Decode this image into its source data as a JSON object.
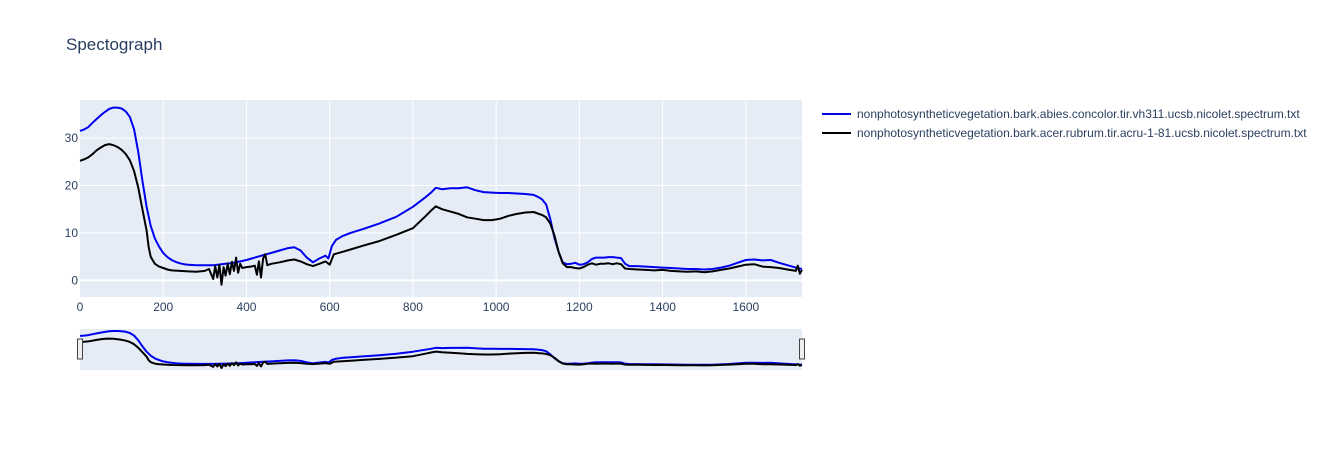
{
  "chart_data": {
    "type": "line",
    "title": "Spectograph",
    "xlabel": "",
    "ylabel": "",
    "xlim": [
      0,
      1735
    ],
    "ylim": [
      -3.5,
      38
    ],
    "x_ticks": [
      0,
      200,
      400,
      600,
      800,
      1000,
      1200,
      1400,
      1600
    ],
    "y_ticks": [
      0,
      10,
      20,
      30
    ],
    "grid": true,
    "legend_position": "top-right",
    "rangeslider": true,
    "colors": {
      "plot_bg": "#E5ECF6",
      "grid": "#ffffff",
      "text": "#2a3f5f"
    },
    "series": [
      {
        "name": "nonphotosyntheticvegetation.bark.abies.concolor.tir.vh311.ucsb.nicolet.spectrum.txt",
        "color": "#0000ee",
        "x": [
          0,
          10,
          20,
          30,
          40,
          50,
          60,
          70,
          80,
          90,
          100,
          110,
          120,
          130,
          140,
          150,
          160,
          170,
          180,
          190,
          200,
          210,
          220,
          230,
          240,
          250,
          260,
          280,
          300,
          320,
          340,
          360,
          380,
          400,
          420,
          440,
          460,
          480,
          500,
          515,
          530,
          545,
          560,
          575,
          590,
          597,
          605,
          615,
          630,
          650,
          680,
          720,
          760,
          800,
          830,
          845,
          855,
          870,
          890,
          910,
          930,
          950,
          970,
          990,
          1010,
          1030,
          1050,
          1070,
          1090,
          1100,
          1110,
          1120,
          1130,
          1140,
          1150,
          1160,
          1170,
          1180,
          1190,
          1200,
          1210,
          1220,
          1230,
          1240,
          1250,
          1260,
          1270,
          1280,
          1290,
          1300,
          1310,
          1320,
          1340,
          1360,
          1380,
          1400,
          1420,
          1440,
          1460,
          1480,
          1500,
          1520,
          1540,
          1560,
          1580,
          1600,
          1620,
          1640,
          1660,
          1680,
          1700,
          1720,
          1735
        ],
        "y": [
          31.5,
          31.8,
          32.3,
          33.2,
          34.0,
          34.8,
          35.5,
          36.1,
          36.4,
          36.4,
          36.2,
          35.6,
          34.4,
          31.8,
          27.0,
          21.0,
          15.5,
          11.5,
          8.8,
          7.1,
          5.8,
          4.9,
          4.3,
          3.9,
          3.6,
          3.4,
          3.3,
          3.2,
          3.2,
          3.2,
          3.4,
          3.6,
          3.9,
          4.3,
          4.8,
          5.3,
          5.8,
          6.3,
          6.8,
          7.0,
          6.3,
          4.8,
          3.8,
          4.6,
          5.2,
          4.6,
          7.2,
          8.5,
          9.3,
          10.0,
          10.8,
          12.0,
          13.4,
          15.5,
          17.5,
          18.6,
          19.5,
          19.2,
          19.4,
          19.4,
          19.6,
          19.0,
          18.6,
          18.5,
          18.4,
          18.4,
          18.3,
          18.2,
          18.0,
          17.6,
          17.1,
          16.0,
          13.0,
          9.0,
          6.0,
          3.8,
          3.4,
          3.5,
          3.7,
          3.3,
          3.4,
          3.8,
          4.5,
          4.8,
          4.8,
          4.8,
          4.9,
          4.9,
          4.8,
          4.7,
          3.5,
          3.0,
          3.0,
          2.9,
          2.8,
          2.7,
          2.6,
          2.5,
          2.4,
          2.4,
          2.3,
          2.4,
          2.7,
          3.1,
          3.7,
          4.3,
          4.4,
          4.2,
          4.3,
          3.7,
          3.2,
          2.7,
          2.4
        ]
      },
      {
        "name": "nonphotosyntheticvegetation.bark.acer.rubrum.tir.acru-1-81.ucsb.nicolet.spectrum.txt",
        "color": "#000000",
        "x": [
          0,
          10,
          20,
          30,
          40,
          50,
          60,
          70,
          80,
          90,
          100,
          110,
          120,
          130,
          140,
          150,
          160,
          165,
          170,
          175,
          180,
          190,
          200,
          210,
          220,
          240,
          260,
          280,
          300,
          310,
          320,
          325,
          330,
          335,
          340,
          345,
          350,
          355,
          360,
          365,
          370,
          375,
          380,
          385,
          390,
          400,
          410,
          420,
          425,
          430,
          435,
          440,
          445,
          450,
          460,
          480,
          500,
          515,
          530,
          545,
          560,
          575,
          590,
          600,
          610,
          630,
          650,
          680,
          720,
          760,
          800,
          830,
          845,
          855,
          870,
          890,
          910,
          930,
          950,
          970,
          990,
          1010,
          1030,
          1050,
          1070,
          1090,
          1100,
          1110,
          1120,
          1130,
          1140,
          1150,
          1160,
          1170,
          1180,
          1190,
          1200,
          1210,
          1220,
          1230,
          1240,
          1250,
          1260,
          1270,
          1280,
          1290,
          1300,
          1310,
          1320,
          1340,
          1360,
          1380,
          1400,
          1420,
          1440,
          1460,
          1480,
          1500,
          1520,
          1540,
          1560,
          1580,
          1600,
          1620,
          1640,
          1660,
          1680,
          1700,
          1720,
          1725,
          1730,
          1735
        ],
        "y": [
          25.2,
          25.5,
          25.9,
          26.6,
          27.4,
          28.0,
          28.5,
          28.7,
          28.5,
          28.1,
          27.5,
          26.6,
          25.3,
          23.0,
          19.5,
          15.0,
          10.5,
          7.0,
          5.0,
          4.2,
          3.5,
          2.9,
          2.6,
          2.3,
          2.1,
          2.0,
          1.9,
          1.8,
          2.0,
          2.4,
          0.3,
          3.0,
          0.6,
          3.3,
          -0.9,
          2.8,
          1.0,
          3.5,
          1.3,
          3.9,
          2.0,
          4.8,
          1.6,
          3.5,
          2.6,
          2.8,
          2.9,
          3.1,
          1.2,
          4.0,
          0.6,
          4.6,
          5.5,
          3.2,
          3.5,
          3.8,
          4.2,
          4.4,
          4.0,
          3.4,
          3.0,
          3.5,
          4.0,
          3.3,
          5.5,
          6.0,
          6.5,
          7.3,
          8.3,
          9.6,
          11.0,
          13.5,
          14.8,
          15.6,
          15.0,
          14.5,
          14.0,
          13.3,
          13.0,
          12.7,
          12.7,
          13.0,
          13.6,
          14.0,
          14.3,
          14.4,
          14.1,
          13.8,
          13.3,
          12.0,
          9.5,
          6.0,
          3.6,
          2.8,
          2.8,
          2.6,
          2.5,
          2.8,
          3.3,
          3.6,
          3.3,
          3.5,
          3.5,
          3.6,
          3.4,
          3.6,
          3.4,
          2.5,
          2.4,
          2.3,
          2.2,
          2.1,
          2.2,
          2.0,
          1.9,
          1.8,
          1.9,
          1.7,
          1.9,
          2.2,
          2.5,
          2.9,
          3.3,
          3.4,
          2.9,
          2.8,
          2.6,
          2.3,
          2.0,
          3.1,
          1.4,
          2.2
        ]
      }
    ]
  }
}
